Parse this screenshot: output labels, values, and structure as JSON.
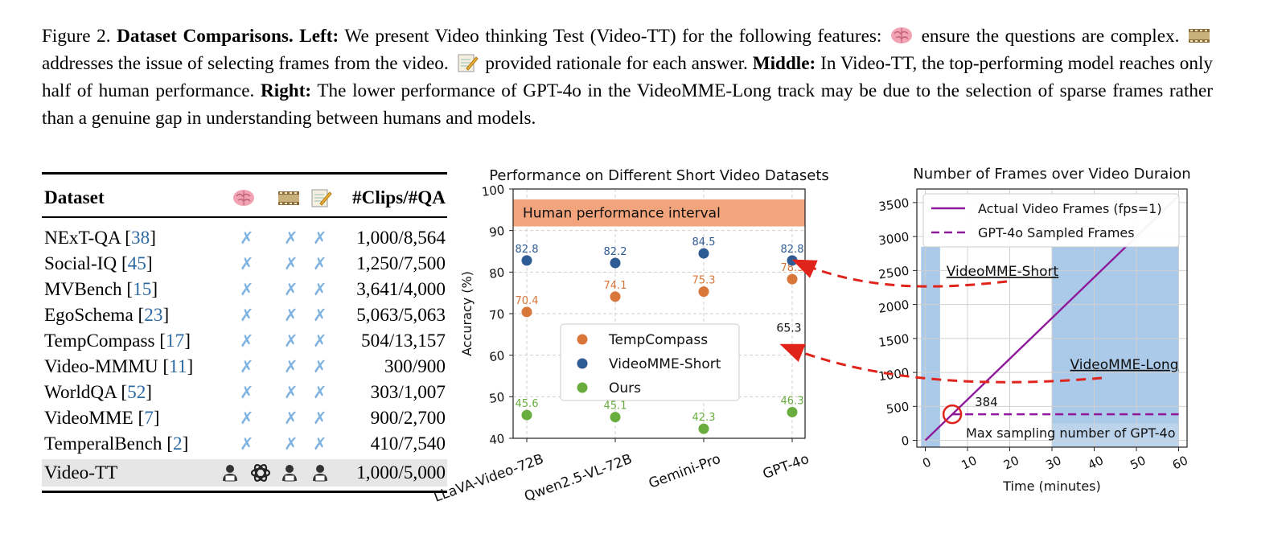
{
  "caption": {
    "fig": "Figure 2.",
    "title": "Dataset Comparisons.",
    "left_label": "Left:",
    "left_text_1": "We present Video thinking Test (Video-TT) for the following features:",
    "left_text_2": "ensure the questions are complex.",
    "left_text_3": "addresses the issue of selecting frames from the video.",
    "left_text_4": "provided rationale for each answer.",
    "middle_label": "Middle:",
    "middle_text": "In Video-TT, the top-performing model reaches only half of human performance.",
    "right_label": "Right:",
    "right_text": "The lower performance of GPT-4o in the VideoMME-Long track may be due to the selection of sparse frames rather than a genuine gap in understanding between humans and models."
  },
  "table": {
    "header": {
      "dataset": "Dataset",
      "count": "#Clips/#QA",
      "icons": [
        "brain-icon",
        "film-icon",
        "memo-icon"
      ]
    },
    "rows": [
      {
        "name": "NExT-QA [",
        "cite": "38",
        "close": "]",
        "marks": [
          "✗",
          "✗",
          "✗"
        ],
        "count": "1,000/8,564"
      },
      {
        "name": "Social-IQ [",
        "cite": "45",
        "close": "]",
        "marks": [
          "✗",
          "✗",
          "✗"
        ],
        "count": "1,250/7,500"
      },
      {
        "name": "MVBench [",
        "cite": "15",
        "close": "]",
        "marks": [
          "✗",
          "✗",
          "✗"
        ],
        "count": "3,641/4,000"
      },
      {
        "name": "EgoSchema [",
        "cite": "23",
        "close": "]",
        "marks": [
          "✗",
          "✗",
          "✗"
        ],
        "count": "5,063/5,063"
      },
      {
        "name": "TempCompass [",
        "cite": "17",
        "close": "]",
        "marks": [
          "✗",
          "✗",
          "✗"
        ],
        "count": "504/13,157"
      },
      {
        "name": "Video-MMMU [",
        "cite": "11",
        "close": "]",
        "marks": [
          "✗",
          "✗",
          "✗"
        ],
        "count": "300/900"
      },
      {
        "name": "WorldQA [",
        "cite": "52",
        "close": "]",
        "marks": [
          "✗",
          "✗",
          "✗"
        ],
        "count": "303/1,007"
      },
      {
        "name": "VideoMME [",
        "cite": "7",
        "close": "]",
        "marks": [
          "✗",
          "✗",
          "✗"
        ],
        "count": "900/2,700"
      },
      {
        "name": "TemperalBench [",
        "cite": "2",
        "close": "]",
        "marks": [
          "✗",
          "✗",
          "✗"
        ],
        "count": "410/7,540"
      }
    ],
    "highlight": {
      "name": "Video-TT",
      "icons": [
        "technologist-icon",
        "openai-logo-icon",
        "technologist-icon",
        "technologist-icon"
      ],
      "count": "1,000/5,000"
    }
  },
  "chart_data": [
    {
      "type": "scatter",
      "title": "Performance on Different Short Video Datasets",
      "xlabel": "",
      "ylabel": "Accuracy (%)",
      "ylim": [
        40,
        100
      ],
      "yticks": [
        "40",
        "50",
        "60",
        "70",
        "80",
        "90",
        "100"
      ],
      "categories": [
        "LLaVA-Video-72B",
        "Qwen2.5-VL-72B",
        "Gemini-Pro",
        "GPT-4o"
      ],
      "series": [
        {
          "name": "TempCompass",
          "color": "#d9763a",
          "values": [
            70.4,
            74.1,
            75.3,
            78.3
          ],
          "labels": [
            "70.4",
            "74.1",
            "75.3",
            "78.3"
          ]
        },
        {
          "name": "VideoMME-Short",
          "color": "#2f5b94",
          "values": [
            82.8,
            82.2,
            84.5,
            82.8
          ],
          "labels": [
            "82.8",
            "82.2",
            "84.5",
            "82.8"
          ]
        },
        {
          "name": "Ours",
          "color": "#6aad3f",
          "values": [
            45.6,
            45.1,
            42.3,
            46.3
          ],
          "labels": [
            "45.6",
            "45.1",
            "42.3",
            "46.3"
          ]
        }
      ],
      "band": {
        "label": "Human performance interval",
        "from": 91,
        "to": 97.5,
        "color": "#f2a47c"
      },
      "annotation": {
        "text": "65.3",
        "value": 65.3
      },
      "grid": true,
      "legend": "center"
    },
    {
      "type": "line",
      "title": "Number of Frames over Video Duraion",
      "xlabel": "Time (minutes)",
      "ylabel": "",
      "xlim": [
        -2,
        62
      ],
      "ylim": [
        -100,
        3700
      ],
      "xticks": [
        "0",
        "10",
        "20",
        "30",
        "40",
        "50",
        "60"
      ],
      "yticks": [
        "0",
        "500",
        "1000",
        "1500",
        "2000",
        "2500",
        "3000",
        "3500"
      ],
      "series": [
        {
          "name": "Actual Video Frames (fps=1)",
          "color": "#8e1a9b",
          "style": "solid",
          "x": [
            0,
            60
          ],
          "y": [
            0,
            3600
          ]
        },
        {
          "name": "GPT-4o Sampled Frames",
          "color": "#8e1a9b",
          "style": "dashed",
          "x": [
            6.4,
            60
          ],
          "y": [
            384,
            384
          ]
        }
      ],
      "regions": [
        {
          "label": "VideoMME-Short",
          "from": -1,
          "to": 3.5,
          "color": "#a7c6e8"
        },
        {
          "label": "VideoMME-Long",
          "from": 30,
          "to": 60,
          "color": "#a7c6e8"
        }
      ],
      "annotations": [
        {
          "text": "384",
          "x": 6.4,
          "y": 384
        },
        {
          "text": "Max sampling number of GPT-4o"
        }
      ],
      "grid": true,
      "legend": "top-left"
    }
  ]
}
